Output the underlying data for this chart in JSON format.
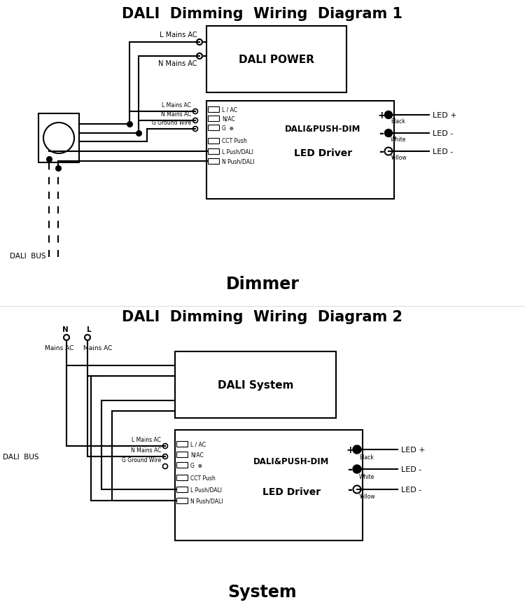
{
  "title1": "DALI  Dimming  Wiring  Diagram 1",
  "title2": "DALI  Dimming  Wiring  Diagram 2",
  "subtitle1": "Dimmer",
  "subtitle2": "System",
  "bg_color": "#ffffff",
  "line_color": "#000000",
  "text_color": "#000000",
  "fig_width": 7.5,
  "fig_height": 8.78
}
